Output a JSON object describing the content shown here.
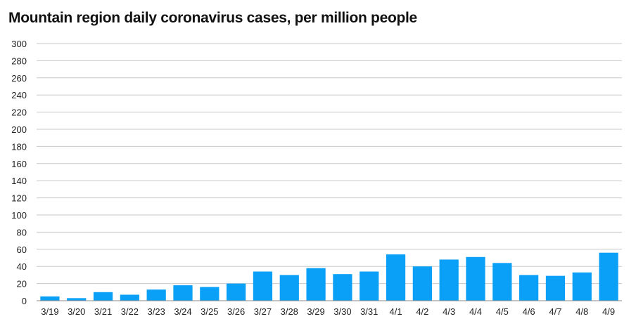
{
  "chart_data": {
    "type": "bar",
    "title": "Mountain region daily coronavirus cases, per million people",
    "xlabel": "",
    "ylabel": "",
    "categories": [
      "3/19",
      "3/20",
      "3/21",
      "3/22",
      "3/23",
      "3/24",
      "3/25",
      "3/26",
      "3/27",
      "3/28",
      "3/29",
      "3/30",
      "3/31",
      "4/1",
      "4/2",
      "4/3",
      "4/4",
      "4/5",
      "4/6",
      "4/7",
      "4/8",
      "4/9"
    ],
    "values": [
      5,
      3,
      10,
      7,
      13,
      18,
      16,
      20,
      34,
      30,
      38,
      31,
      34,
      54,
      40,
      48,
      51,
      44,
      30,
      29,
      33,
      56
    ],
    "ylim": [
      0,
      300
    ],
    "yticks": [
      0,
      20,
      40,
      60,
      80,
      100,
      120,
      140,
      160,
      180,
      200,
      220,
      240,
      260,
      280,
      300
    ],
    "grid": true,
    "legend": "none",
    "bar_color": "#0aa0f7",
    "grid_color": "#c8c8c8"
  }
}
